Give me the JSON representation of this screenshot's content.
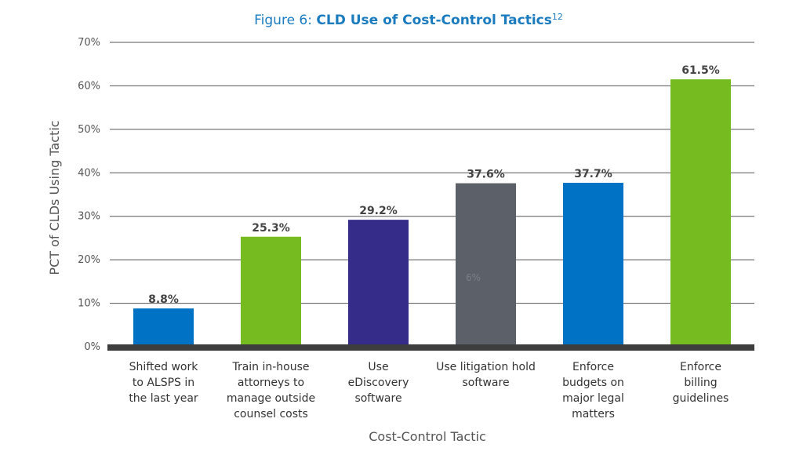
{
  "figure": {
    "title_prefix": "Figure 6: ",
    "title_main": "CLD Use of Cost-Control Tactics",
    "title_sup": "12"
  },
  "chart_data": {
    "type": "bar",
    "title": "Figure 6: CLD Use of Cost-Control Tactics",
    "categories": [
      [
        "Shifted work",
        "to ALSPS in",
        "the last year"
      ],
      [
        "Train in-house",
        "attorneys to",
        "manage outside",
        "counsel costs"
      ],
      [
        "Use",
        "eDiscovery",
        "software"
      ],
      [
        "Use litigation hold",
        "software"
      ],
      [
        "Enforce",
        "budgets on",
        "major legal",
        "matters"
      ],
      [
        "Enforce",
        "billing",
        "guidelines"
      ]
    ],
    "values": [
      8.8,
      25.3,
      29.2,
      37.6,
      37.7,
      61.5
    ],
    "data_labels": [
      "8.8%",
      "25.3%",
      "29.2%",
      "37.6%",
      "37.7%",
      "61.5%"
    ],
    "colors": [
      "#0072c6",
      "#76bc21",
      "#352c8a",
      "#5c6169",
      "#0072c6",
      "#76bc21"
    ],
    "xlabel": "Cost-Control Tactic",
    "ylabel": "PCT of CLDs Using Tactic",
    "ylim": [
      0,
      70
    ],
    "yticks": [
      0,
      10,
      20,
      30,
      40,
      50,
      60,
      70
    ],
    "ytick_labels": [
      "0%",
      "10%",
      "20%",
      "30%",
      "40%",
      "50%",
      "60%",
      "70%"
    ],
    "grid": true,
    "stray_text": "6%"
  }
}
